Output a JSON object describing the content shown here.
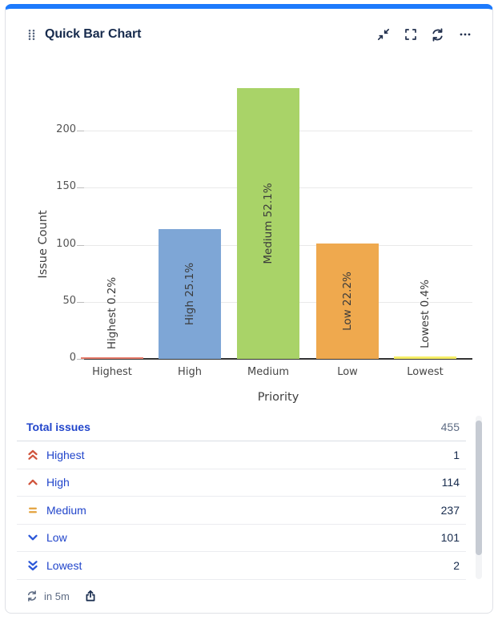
{
  "header": {
    "title": "Quick Bar Chart",
    "icons": [
      "drag-handle-icon",
      "collapse-icon",
      "expand-icon",
      "refresh-icon",
      "more-icon"
    ]
  },
  "chart_data": {
    "type": "bar",
    "title": "",
    "categories": [
      "Highest",
      "High",
      "Medium",
      "Low",
      "Lowest"
    ],
    "values": [
      1,
      114,
      237,
      101,
      2
    ],
    "bar_labels": [
      "Highest 0.2%",
      "High 25.1%",
      "Medium 52.1%",
      "Low 22.2%",
      "Lowest 0.4%"
    ],
    "bar_colors": [
      "#e87f6e",
      "#7ea6d6",
      "#a9d368",
      "#efa94e",
      "#f6ee66"
    ],
    "xlabel": "Priority",
    "ylabel": "Issue Count",
    "yticks": [
      0,
      50,
      100,
      150,
      200
    ],
    "ylim": [
      0,
      240
    ],
    "grid": true,
    "legend": false
  },
  "table": {
    "total_row": {
      "label": "Total issues",
      "value": "455"
    },
    "rows": [
      {
        "icon": "priority-highest-icon",
        "icon_type": "chevron-double-up",
        "icon_color": "#d0543c",
        "label": "Highest",
        "value": "1"
      },
      {
        "icon": "priority-high-icon",
        "icon_type": "chevron-up",
        "icon_color": "#d0543c",
        "label": "High",
        "value": "114"
      },
      {
        "icon": "priority-medium-icon",
        "icon_type": "equals",
        "icon_color": "#e3a23e",
        "label": "Medium",
        "value": "237"
      },
      {
        "icon": "priority-low-icon",
        "icon_type": "chevron-down",
        "icon_color": "#2b57d8",
        "label": "Low",
        "value": "101"
      },
      {
        "icon": "priority-lowest-icon",
        "icon_type": "chevron-double-down",
        "icon_color": "#2b57d8",
        "label": "Lowest",
        "value": "2"
      }
    ]
  },
  "footer": {
    "refresh_in": "in 5m"
  },
  "colors": {
    "accent_top_bar": "#1d7afc",
    "card_border": "#dfe1e6",
    "title_text": "#172b4d",
    "link_blue": "#2145cb",
    "muted_text": "#5e6c84",
    "gridline": "#e9e9e9",
    "axis_line": "#333333"
  }
}
